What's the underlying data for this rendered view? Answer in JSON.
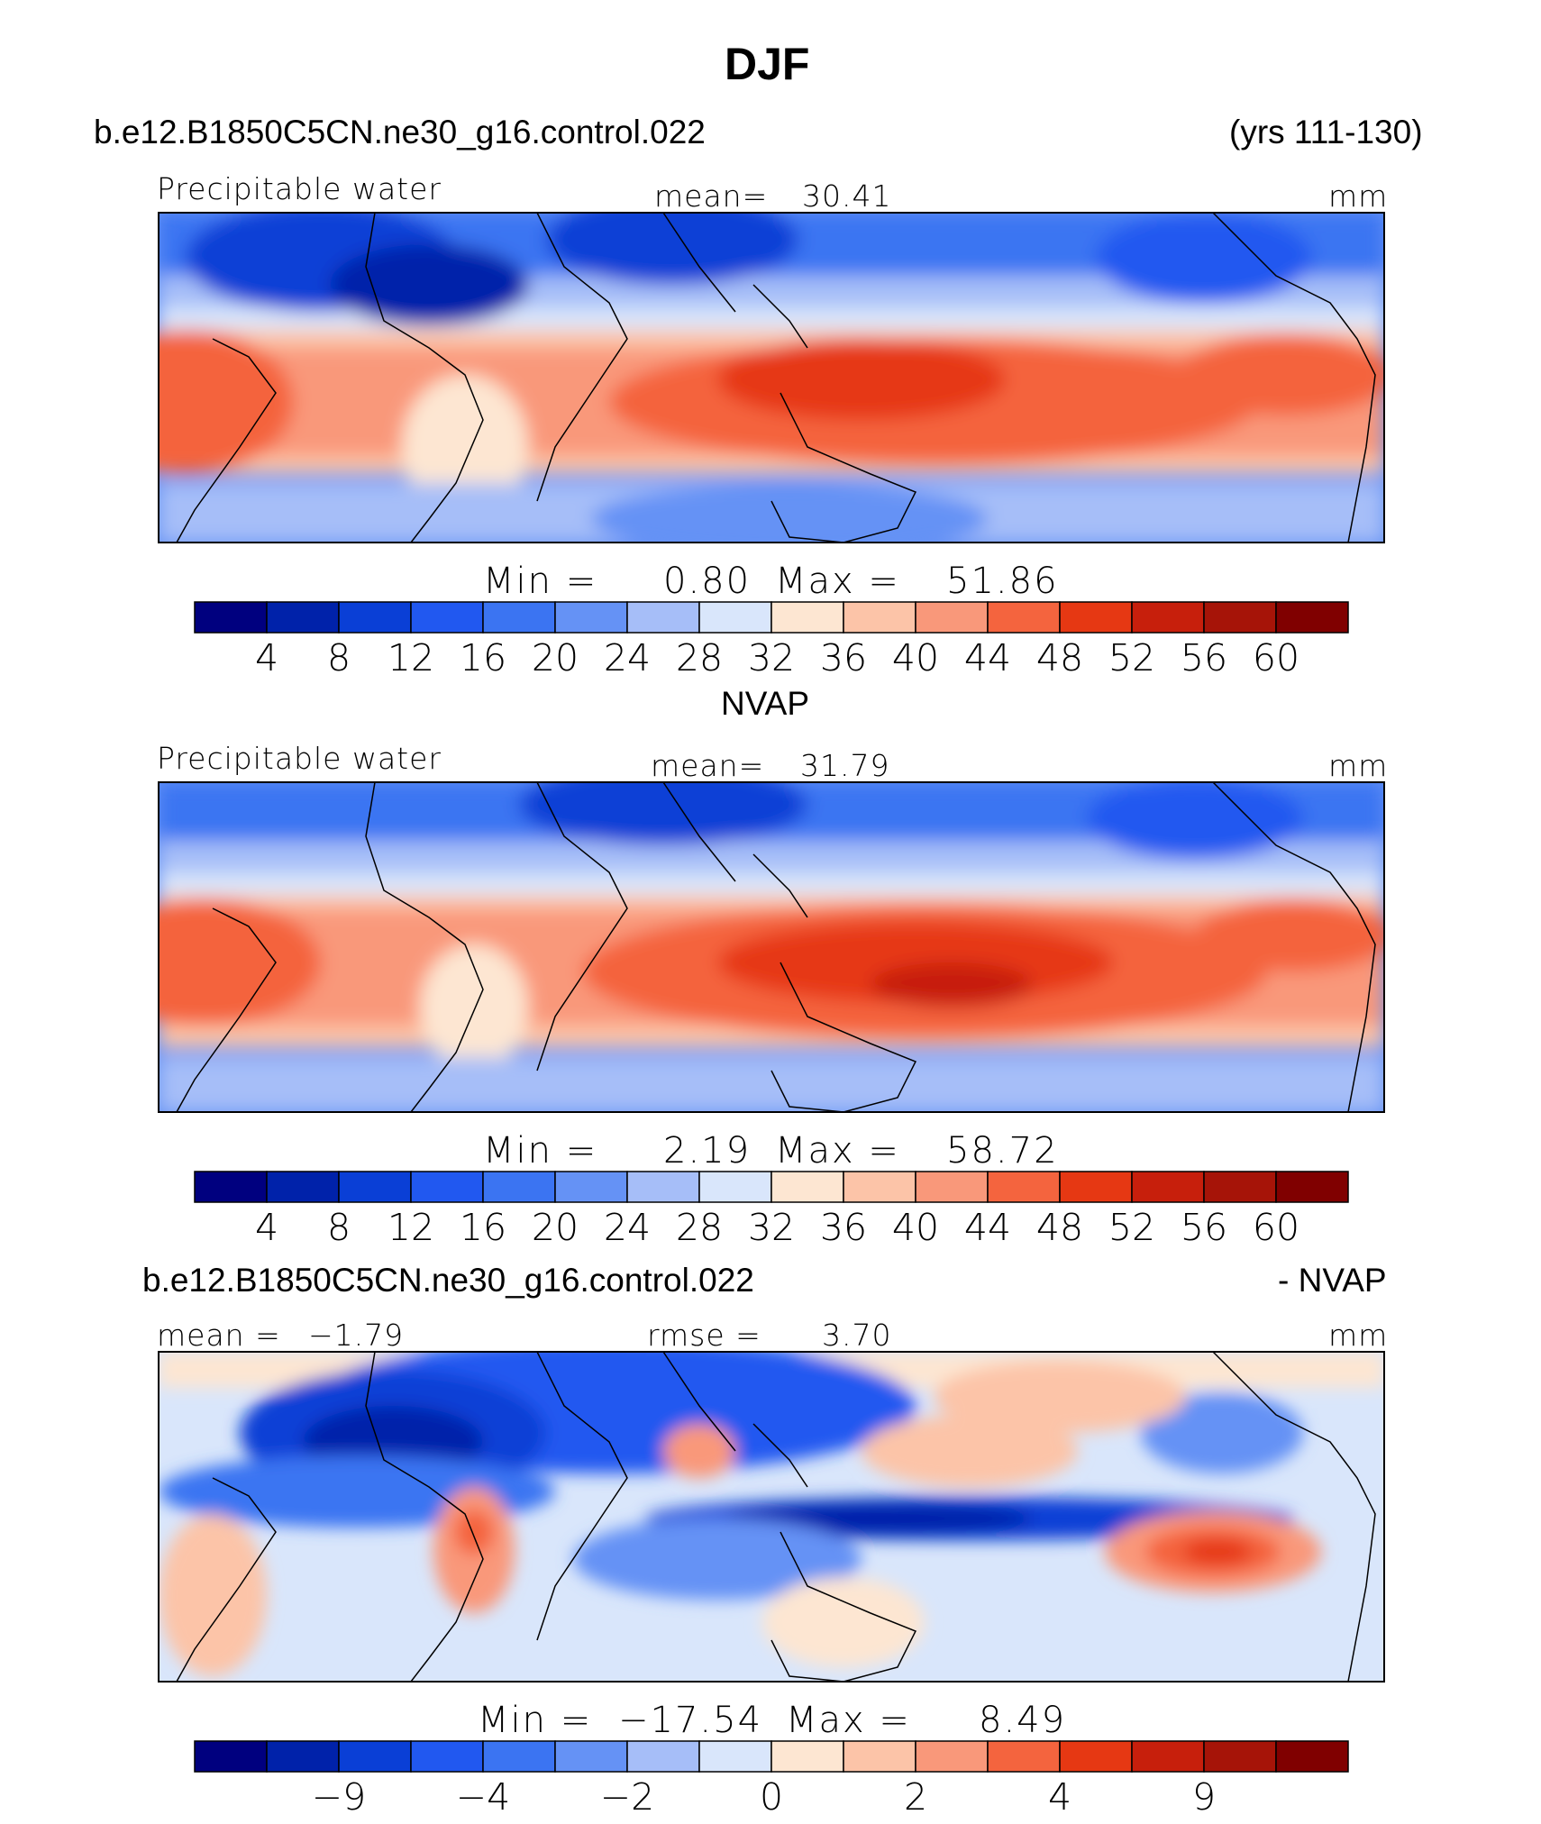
{
  "title": "DJF",
  "header": {
    "case_name": "b.e12.B1850C5CN.ne30_g16.control.022",
    "years": "(yrs 111-130)"
  },
  "palettes": {
    "absolute": [
      "#00007f",
      "#0022aa",
      "#0a3fd6",
      "#2158f0",
      "#3b74f2",
      "#6592f5",
      "#a6bef8",
      "#d9e6fb",
      "#fde6d2",
      "#fcc4a8",
      "#f9987a",
      "#f4643e",
      "#e63813",
      "#c71f0c",
      "#a61408",
      "#800000"
    ],
    "difference": [
      "#00007f",
      "#0022aa",
      "#0a3fd6",
      "#2158f0",
      "#3b74f2",
      "#6592f5",
      "#a6bef8",
      "#d9e6fb",
      "#fde6d2",
      "#fcc4a8",
      "#f9987a",
      "#f4643e",
      "#e63813",
      "#c71f0c",
      "#a61408",
      "#800000"
    ]
  },
  "panels": [
    {
      "id": "model",
      "label": "Precipitable  water",
      "stat1_label": "mean=",
      "stat1_value": "30.41",
      "units": "mm",
      "min_label": "Min  =",
      "min_value": "0.80",
      "max_label": "Max  =",
      "max_value": "51.86",
      "ticks": [
        "4",
        "8",
        "12",
        "16",
        "20",
        "24",
        "28",
        "32",
        "36",
        "40",
        "44",
        "48",
        "52",
        "56",
        "60"
      ]
    },
    {
      "id": "obs",
      "subtitle": "NVAP",
      "label": "Precipitable  water",
      "stat1_label": "mean=",
      "stat1_value": "31.79",
      "units": "mm",
      "min_label": "Min  =",
      "min_value": "2.19",
      "max_label": "Max  =",
      "max_value": "58.72",
      "ticks": [
        "4",
        "8",
        "12",
        "16",
        "20",
        "24",
        "28",
        "32",
        "36",
        "40",
        "44",
        "48",
        "52",
        "56",
        "60"
      ]
    },
    {
      "id": "diff",
      "title_left": "b.e12.B1850C5CN.ne30_g16.control.022",
      "title_right": "- NVAP",
      "stat1_label": "mean  =",
      "stat1_value": "−1.79",
      "stat2_label": "rmse  =",
      "stat2_value": "3.70",
      "units": "mm",
      "min_label": "Min  =",
      "min_value": "−17.54",
      "max_label": "Max  =",
      "max_value": "8.49",
      "ticks": [
        "−9",
        "−4",
        "−2",
        "0",
        "2",
        "4",
        "9"
      ]
    }
  ]
}
